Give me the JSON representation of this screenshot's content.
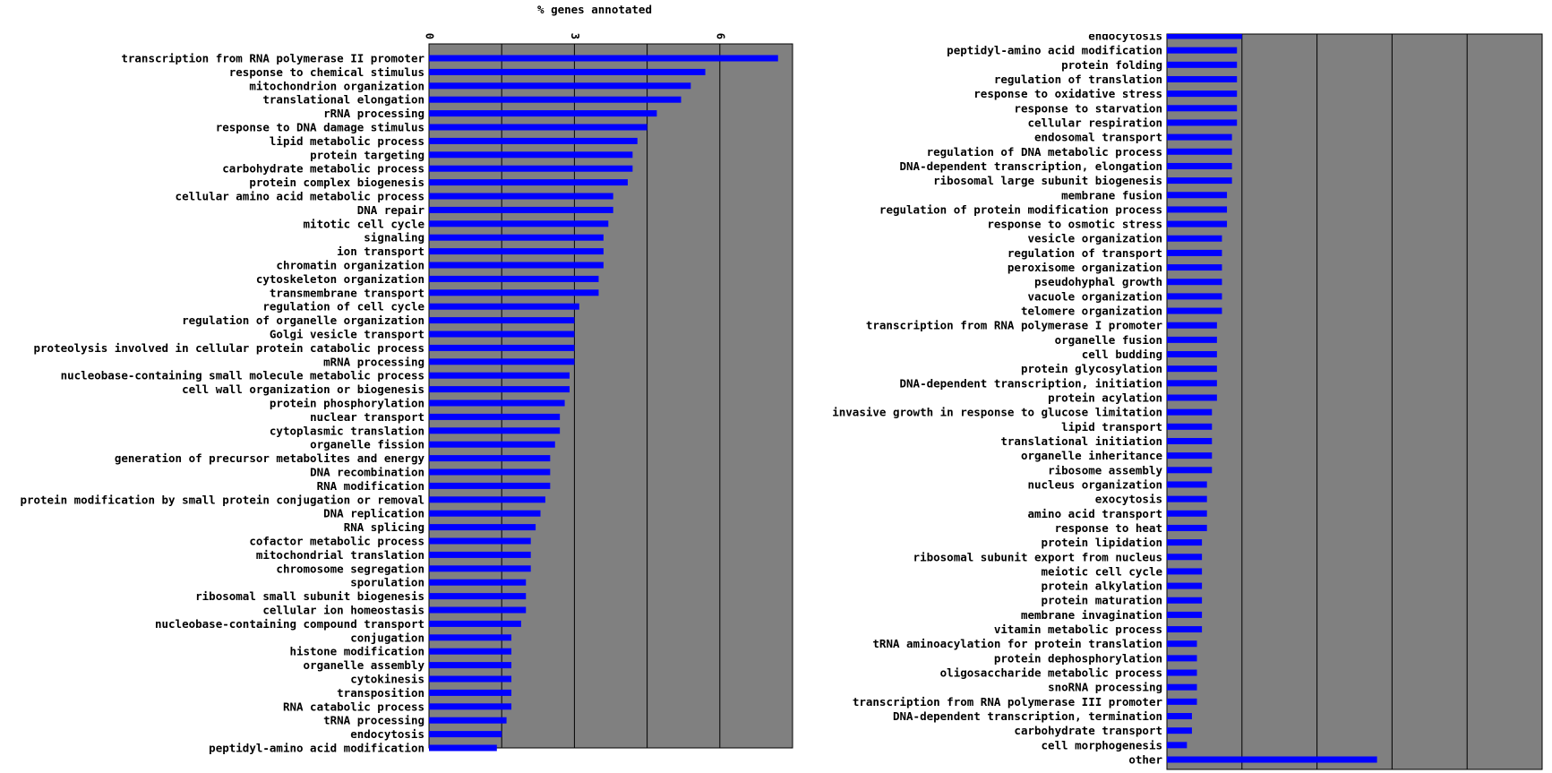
{
  "chart_data": {
    "type": "bar",
    "orientation": "horizontal",
    "title": "% genes annotated",
    "xlabel": "% genes annotated",
    "xlim": [
      0,
      7.5
    ],
    "x_ticks": [
      "0",
      "3",
      "6"
    ],
    "grid": "vertical",
    "colors": {
      "plot_bg": "#808080",
      "bar": "#0000ff",
      "grid": "#000000"
    },
    "panels": [
      {
        "categories": [
          "transcription from RNA polymerase II promoter",
          "response to chemical stimulus",
          "mitochondrion organization",
          "translational elongation",
          "rRNA processing",
          "response to DNA damage stimulus",
          "lipid metabolic process",
          "protein targeting",
          "carbohydrate metabolic process",
          "protein complex biogenesis",
          "cellular amino acid metabolic process",
          "DNA repair",
          "mitotic cell cycle",
          "signaling",
          "ion transport",
          "chromatin organization",
          "cytoskeleton organization",
          "transmembrane transport",
          "regulation of cell cycle",
          "regulation of organelle organization",
          "Golgi vesicle transport",
          "proteolysis involved in cellular protein catabolic process",
          "mRNA processing",
          "nucleobase-containing small molecule metabolic process",
          "cell wall organization or biogenesis",
          "protein phosphorylation",
          "nuclear transport",
          "cytoplasmic translation",
          "organelle fission",
          "generation of precursor metabolites and energy",
          "DNA recombination",
          "RNA modification",
          "protein modification by small protein conjugation or removal",
          "DNA replication",
          "RNA splicing",
          "cofactor metabolic process",
          "mitochondrial translation",
          "chromosome segregation",
          "sporulation",
          "ribosomal small subunit biogenesis",
          "cellular ion homeostasis",
          "nucleobase-containing compound transport",
          "conjugation",
          "histone modification",
          "organelle assembly",
          "cytokinesis",
          "transposition",
          "RNA catabolic process",
          "tRNA processing",
          "endocytosis",
          "peptidyl-amino acid modification"
        ],
        "values": [
          7.2,
          5.7,
          5.4,
          5.2,
          4.7,
          4.5,
          4.3,
          4.2,
          4.2,
          4.1,
          3.8,
          3.8,
          3.7,
          3.6,
          3.6,
          3.6,
          3.5,
          3.5,
          3.1,
          3.0,
          3.0,
          3.0,
          3.0,
          2.9,
          2.9,
          2.8,
          2.7,
          2.7,
          2.6,
          2.5,
          2.5,
          2.5,
          2.4,
          2.3,
          2.2,
          2.1,
          2.1,
          2.1,
          2.0,
          2.0,
          2.0,
          1.9,
          1.7,
          1.7,
          1.7,
          1.7,
          1.7,
          1.7,
          1.6,
          1.5,
          1.4
        ]
      },
      {
        "categories": [
          "endocytosis",
          "peptidyl-amino acid modification",
          "protein folding",
          "regulation of translation",
          "response to oxidative stress",
          "response to starvation",
          "cellular respiration",
          "endosomal transport",
          "regulation of DNA metabolic process",
          "DNA-dependent transcription, elongation",
          "ribosomal large subunit biogenesis",
          "membrane fusion",
          "regulation of protein modification process",
          "response to osmotic stress",
          "vesicle organization",
          "regulation of transport",
          "peroxisome organization",
          "pseudohyphal growth",
          "vacuole organization",
          "telomere organization",
          "transcription from RNA polymerase I promoter",
          "organelle fusion",
          "cell budding",
          "protein glycosylation",
          "DNA-dependent transcription, initiation",
          "protein acylation",
          "invasive growth in response to glucose limitation",
          "lipid transport",
          "translational initiation",
          "organelle inheritance",
          "ribosome assembly",
          "nucleus organization",
          "exocytosis",
          "amino acid transport",
          "response to heat",
          "protein lipidation",
          "ribosomal subunit export from nucleus",
          "meiotic cell cycle",
          "protein alkylation",
          "protein maturation",
          "membrane invagination",
          "vitamin metabolic process",
          "tRNA aminoacylation for protein translation",
          "protein dephosphorylation",
          "oligosaccharide metabolic process",
          "snoRNA processing",
          "transcription from RNA polymerase III promoter",
          "DNA-dependent transcription, termination",
          "carbohydrate transport",
          "cell morphogenesis",
          "other"
        ],
        "values": [
          1.5,
          1.4,
          1.4,
          1.4,
          1.4,
          1.4,
          1.4,
          1.3,
          1.3,
          1.3,
          1.3,
          1.2,
          1.2,
          1.2,
          1.1,
          1.1,
          1.1,
          1.1,
          1.1,
          1.1,
          1.0,
          1.0,
          1.0,
          1.0,
          1.0,
          1.0,
          0.9,
          0.9,
          0.9,
          0.9,
          0.9,
          0.8,
          0.8,
          0.8,
          0.8,
          0.7,
          0.7,
          0.7,
          0.7,
          0.7,
          0.7,
          0.7,
          0.6,
          0.6,
          0.6,
          0.6,
          0.6,
          0.5,
          0.5,
          0.4,
          4.2
        ]
      }
    ]
  }
}
